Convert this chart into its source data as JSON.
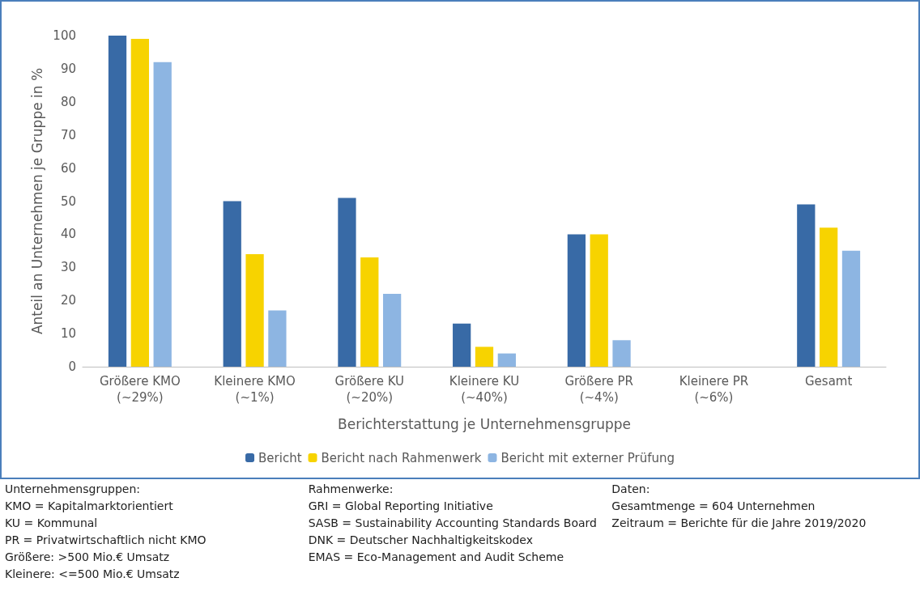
{
  "chart_data": {
    "type": "bar",
    "categories": [
      "Größere KMO\n(~29%)",
      "Kleinere KMO\n(~1%)",
      "Größere KU\n(~20%)",
      "Kleinere KU\n(~40%)",
      "Größere PR\n(~4%)",
      "Kleinere PR\n(~6%)",
      "Gesamt"
    ],
    "series": [
      {
        "name": "Bericht",
        "color": "#386aa6",
        "values": [
          100,
          50,
          51,
          13,
          40,
          0,
          49
        ]
      },
      {
        "name": "Bericht nach Rahmenwerk",
        "color": "#f7d300",
        "values": [
          99,
          34,
          33,
          6,
          40,
          0,
          42
        ]
      },
      {
        "name": "Bericht mit externer Prüfung",
        "color": "#8db5e2",
        "values": [
          92,
          17,
          22,
          4,
          8,
          0,
          35
        ]
      }
    ],
    "xlabel": "Berichterstattung je Unternehmensgruppe",
    "ylabel": "Anteil an Unternehmen je Gruppe in %",
    "ylim": [
      0,
      100
    ],
    "yticks": [
      0,
      10,
      20,
      30,
      40,
      50,
      60,
      70,
      80,
      90,
      100
    ],
    "grid": false,
    "legend": "bottom",
    "annotations": [
      "Unternehmensgruppen:\nKMO = Kapitalmarktorientiert\nKU = Kommunal\nPR = Privatwirtschaftlich nicht KMO\nGrößere: >500 Mio.€ Umsatz\nKleinere: <=500 Mio.€ Umsatz",
      "Rahmenwerke:\nGRI = Global Reporting Initiative\nSASB = Sustainability Accounting Standards Board\nDNK = Deutscher Nachhaltigkeitskodex\nEMAS = Eco-Management and Audit Scheme",
      "Daten:\nGesamtmenge = 604 Unternehmen\nZeitraum = Berichte für die Jahre 2019/2020"
    ]
  }
}
